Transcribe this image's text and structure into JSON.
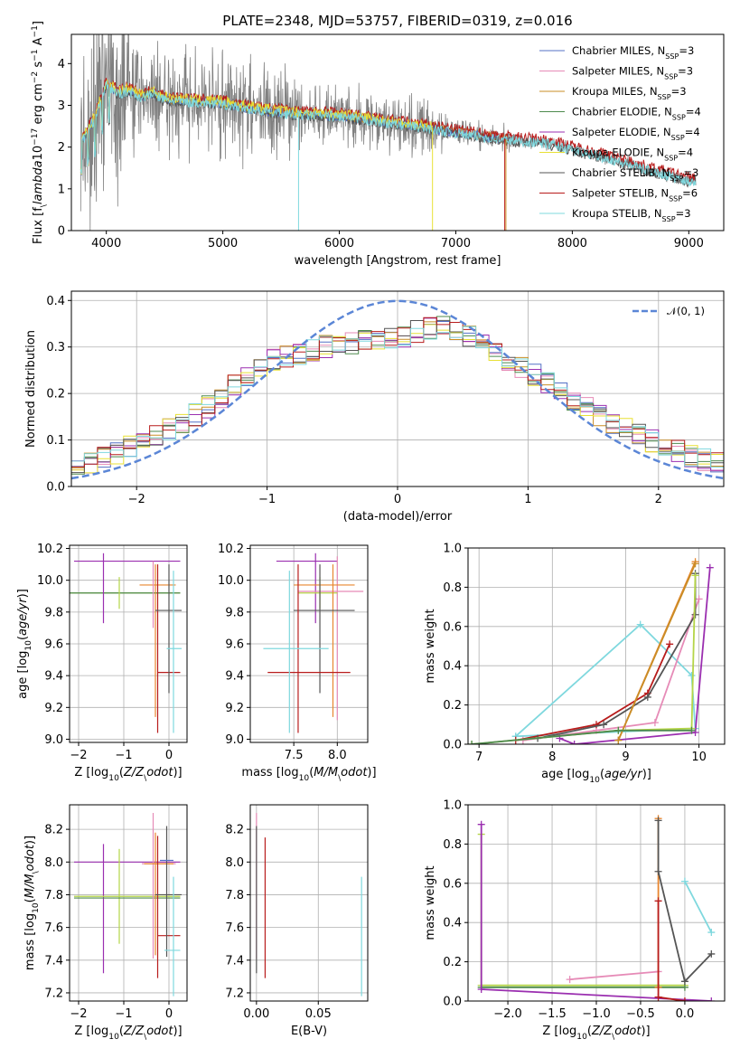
{
  "colors": {
    "Chabrier MILES": "#5470c6",
    "Salpeter MILES": "#e68bb7",
    "Kroupa MILES": "#c98d26",
    "Chabrier ELODIE": "#4e8a4e",
    "Salpeter ELODIE": "#9b2fb0",
    "Kroupa ELODIE": "#e8e035",
    "Chabrier STELIB": "#555555",
    "Salpeter STELIB": "#b81c1c",
    "Kroupa STELIB": "#7fd8de",
    "data": "#808080",
    "normal": "#5b86d6",
    "orange": "#e8862f",
    "lime": "#b5d548"
  },
  "chart_data": [
    {
      "type": "line",
      "title": "PLATE=2348, MJD=53757, FIBERID=0319, z=0.016",
      "xlabel": "wavelength [Angstrom, rest frame]",
      "ylabel": "Flux [f$_\\lambda$10$^{-17}$ erg cm$^{-2}$ s$^{-1}$ A$^{-1}$]",
      "xlim": [
        3700,
        9300
      ],
      "ylim": [
        0,
        4.7
      ],
      "xticks": [
        "4000",
        "5000",
        "6000",
        "7000",
        "8000",
        "9000"
      ],
      "yticks": [
        "0",
        "1",
        "2",
        "3",
        "4"
      ],
      "legend": [
        "Chabrier MILES, N$_{SSP}$=3",
        "Salpeter MILES, N$_{SSP}$=3",
        "Kroupa MILES, N$_{SSP}$=3",
        "Chabrier ELODIE, N$_{SSP}$=4",
        "Salpeter ELODIE, N$_{SSP}$=4",
        "Kroupa ELODIE, N$_{SSP}$=4",
        "Chabrier STELIB, N$_{SSP}$=3",
        "Salpeter STELIB, N$_{SSP}$=6",
        "Kroupa STELIB, N$_{SSP}$=3"
      ],
      "legend_placement": "upper-right",
      "continuum": [
        [
          3800,
          2.2
        ],
        [
          3900,
          2.7
        ],
        [
          4000,
          3.5
        ],
        [
          4100,
          3.3
        ],
        [
          4200,
          3.35
        ],
        [
          4300,
          3.2
        ],
        [
          4400,
          3.3
        ],
        [
          4500,
          3.15
        ],
        [
          4700,
          3.1
        ],
        [
          5000,
          3.05
        ],
        [
          5300,
          2.9
        ],
        [
          5600,
          2.8
        ],
        [
          6000,
          2.75
        ],
        [
          6400,
          2.6
        ],
        [
          6800,
          2.45
        ],
        [
          7000,
          2.35
        ],
        [
          7400,
          2.2
        ],
        [
          7800,
          2.1
        ],
        [
          8000,
          1.95
        ],
        [
          8300,
          1.75
        ],
        [
          8600,
          1.5
        ],
        [
          8800,
          1.35
        ],
        [
          9000,
          1.2
        ]
      ]
    },
    {
      "type": "bar",
      "xlabel": "(data-model)/error",
      "ylabel": "Normed distribution",
      "xlim": [
        -2.5,
        2.5
      ],
      "ylim": [
        0,
        0.42
      ],
      "xticks": [
        "-2",
        "-1",
        "0",
        "1",
        "2"
      ],
      "yticks": [
        "0.0",
        "0.1",
        "0.2",
        "0.3",
        "0.4"
      ],
      "legend": [
        "𝒩(0, 1)"
      ],
      "legend_placement": "upper-right",
      "bins": 50,
      "envelope": [
        [
          -2.5,
          0.035
        ],
        [
          -2.0,
          0.09
        ],
        [
          -1.5,
          0.16
        ],
        [
          -1.0,
          0.27
        ],
        [
          -0.5,
          0.305
        ],
        [
          0.0,
          0.32
        ],
        [
          0.3,
          0.345
        ],
        [
          0.5,
          0.33
        ],
        [
          1.0,
          0.25
        ],
        [
          1.5,
          0.16
        ],
        [
          2.0,
          0.09
        ],
        [
          2.5,
          0.045
        ]
      ]
    },
    {
      "type": "scatter",
      "xlabel": "Z [log$_{10}$($Z/Z_\\odot$)]",
      "ylabel": "age  [log$_{10}$($age/yr$)]",
      "xlim": [
        -2.2,
        0.4
      ],
      "ylim": [
        8.98,
        10.22
      ],
      "xticks": [
        "-2",
        "-1",
        "0"
      ],
      "yticks": [
        "9.0",
        "9.2",
        "9.4",
        "9.6",
        "9.8",
        "10.0",
        "10.2"
      ]
    },
    {
      "type": "scatter",
      "xlabel": "mass [log$_{10}$($M/M_\\odot$)]",
      "xlim": [
        7.0,
        8.35
      ],
      "ylim": [
        8.98,
        10.22
      ],
      "xticks": [
        "7.5",
        "8.0"
      ],
      "yticks": [
        "9.0",
        "9.2",
        "9.4",
        "9.6",
        "9.8",
        "10.0",
        "10.2"
      ]
    },
    {
      "type": "line",
      "xlabel": "age  [log$_{10}$($age/yr$)]",
      "ylabel": "mass weight",
      "xlim": [
        6.85,
        10.35
      ],
      "ylim": [
        0,
        1
      ],
      "xticks": [
        "7",
        "8",
        "9",
        "10"
      ],
      "yticks": [
        "0.0",
        "0.2",
        "0.4",
        "0.6",
        "0.8",
        "1.0"
      ]
    },
    {
      "type": "scatter",
      "xlabel": "Z [log$_{10}$($Z/Z_\\odot$)]",
      "ylabel": "mass [log$_{10}$($M/M_\\odot$)]",
      "xlim": [
        -2.2,
        0.4
      ],
      "ylim": [
        7.15,
        8.35
      ],
      "xticks": [
        "-2",
        "-1",
        "0"
      ],
      "yticks": [
        "7.2",
        "7.4",
        "7.6",
        "7.8",
        "8.0",
        "8.2"
      ]
    },
    {
      "type": "scatter",
      "xlabel": "E(B-V)",
      "xlim": [
        -0.005,
        0.09
      ],
      "ylim": [
        7.15,
        8.35
      ],
      "xticks": [
        "0.00",
        "0.05"
      ],
      "yticks": [
        "7.2",
        "7.4",
        "7.6",
        "7.8",
        "8.0",
        "8.2"
      ]
    },
    {
      "type": "line",
      "xlabel": "Z [log$_{10}$($Z/Z_\\odot$)]",
      "ylabel": "mass weight",
      "xlim": [
        -2.45,
        0.45
      ],
      "ylim": [
        0,
        1
      ],
      "xticks": [
        "-2.0",
        "-1.5",
        "-1.0",
        "-0.5",
        "0.0"
      ],
      "yticks": [
        "0.0",
        "0.2",
        "0.4",
        "0.6",
        "0.8",
        "1.0"
      ]
    }
  ],
  "err": {
    "age_z": [
      {
        "c": "#b5d548",
        "x": -2.3,
        "y": 9.92,
        "xe": [
          -2.3,
          0.25
        ],
        "ye": [
          9.92,
          9.92
        ]
      },
      {
        "c": "#4e8a4e",
        "x": -2.3,
        "y": 9.92,
        "xe": [
          -2.3,
          0.25
        ],
        "ye": [
          9.92,
          9.92
        ]
      },
      {
        "c": "#9b2fb0",
        "x": -1.45,
        "y": 10.12,
        "xe": [
          -2.1,
          0.25
        ],
        "ye": [
          9.73,
          10.17
        ]
      },
      {
        "c": "#b5d548",
        "x": -1.1,
        "y": 9.92,
        "xe": [
          -1.1,
          -1.1
        ],
        "ye": [
          9.82,
          10.02
        ]
      },
      {
        "c": "#e8862f",
        "x": -0.3,
        "y": 9.97,
        "xe": [
          -0.65,
          0.15
        ],
        "ye": [
          9.14,
          10.1
        ]
      },
      {
        "c": "#e68bb7",
        "x": -0.35,
        "y": 9.92,
        "xe": [
          -0.35,
          -0.35
        ],
        "ye": [
          9.7,
          10.12
        ]
      },
      {
        "c": "#b81c1c",
        "x": -0.25,
        "y": 9.42,
        "xe": [
          -0.25,
          0.25
        ],
        "ye": [
          9.04,
          10.1
        ]
      },
      {
        "c": "#555555",
        "x": -0.0,
        "y": 9.81,
        "xe": [
          -0.3,
          0.28
        ],
        "ye": [
          9.29,
          10.1
        ]
      },
      {
        "c": "#7fd8de",
        "x": 0.1,
        "y": 9.57,
        "xe": [
          -0.05,
          0.28
        ],
        "ye": [
          9.04,
          10.06
        ]
      }
    ],
    "age_mass": [
      {
        "c": "#9b2fb0",
        "x": 7.75,
        "y": 10.12,
        "xe": [
          7.3,
          8.0
        ],
        "ye": [
          9.73,
          10.17
        ]
      },
      {
        "c": "#e68bb7",
        "x": 8.0,
        "y": 9.93,
        "xe": [
          7.55,
          8.3
        ],
        "ye": [
          9.12,
          10.15
        ]
      },
      {
        "c": "#b5d548",
        "x": 7.8,
        "y": 9.92,
        "xe": [
          7.55,
          8.0
        ],
        "ye": [
          9.82,
          10.02
        ]
      },
      {
        "c": "#e8862f",
        "x": 7.95,
        "y": 9.97,
        "xe": [
          7.5,
          8.2
        ],
        "ye": [
          9.14,
          10.1
        ]
      },
      {
        "c": "#555555",
        "x": 7.8,
        "y": 9.81,
        "xe": [
          7.5,
          8.2
        ],
        "ye": [
          9.29,
          10.1
        ]
      },
      {
        "c": "#b81c1c",
        "x": 7.55,
        "y": 9.42,
        "xe": [
          7.2,
          8.15
        ],
        "ye": [
          9.04,
          10.1
        ]
      },
      {
        "c": "#7fd8de",
        "x": 7.45,
        "y": 9.57,
        "xe": [
          7.15,
          7.9
        ],
        "ye": [
          9.04,
          10.06
        ]
      }
    ],
    "mass_z": [
      {
        "c": "#9b2fb0",
        "x": -1.45,
        "y": 8.0,
        "xe": [
          -2.1,
          0.25
        ],
        "ye": [
          7.32,
          8.11
        ]
      },
      {
        "c": "#b5d548",
        "x": -1.1,
        "y": 7.79,
        "xe": [
          -2.1,
          0.25
        ],
        "ye": [
          7.5,
          8.08
        ]
      },
      {
        "c": "#4e8a4e",
        "x": -1.1,
        "y": 7.78,
        "xe": [
          -2.1,
          0.25
        ],
        "ye": [
          7.78,
          7.78
        ]
      },
      {
        "c": "#e68bb7",
        "x": -0.35,
        "y": 7.99,
        "xe": [
          -0.6,
          0.15
        ],
        "ye": [
          7.41,
          8.3
        ]
      },
      {
        "c": "#e8862f",
        "x": -0.3,
        "y": 7.99,
        "xe": [
          -0.55,
          0.1
        ],
        "ye": [
          7.43,
          8.18
        ]
      },
      {
        "c": "#b81c1c",
        "x": -0.25,
        "y": 7.55,
        "xe": [
          -0.25,
          0.25
        ],
        "ye": [
          7.29,
          8.16
        ]
      },
      {
        "c": "#555555",
        "x": -0.05,
        "y": 7.8,
        "xe": [
          -0.3,
          0.28
        ],
        "ye": [
          7.42,
          8.22
        ]
      },
      {
        "c": "#5470c6",
        "x": -0.1,
        "y": 8.01,
        "xe": [
          -0.2,
          0.1
        ],
        "ye": [
          8.01,
          8.01
        ]
      },
      {
        "c": "#7fd8de",
        "x": 0.1,
        "y": 7.46,
        "xe": [
          -0.1,
          0.25
        ],
        "ye": [
          7.18,
          7.91
        ]
      }
    ],
    "mass_ebv": [
      {
        "c": "#e68bb7",
        "x": 0.0,
        "y": 8.0,
        "xe": [
          0.0,
          0.0
        ],
        "ye": [
          7.41,
          8.3
        ]
      },
      {
        "c": "#555555",
        "x": 0.0,
        "y": 7.8,
        "xe": [
          0.0,
          0.0
        ],
        "ye": [
          7.32,
          8.22
        ]
      },
      {
        "c": "#b81c1c",
        "x": 0.007,
        "y": 7.55,
        "xe": [
          0.007,
          0.007
        ],
        "ye": [
          7.29,
          8.15
        ]
      },
      {
        "c": "#7fd8de",
        "x": 0.085,
        "y": 7.46,
        "xe": [
          0.085,
          0.085
        ],
        "ye": [
          7.18,
          7.91
        ]
      }
    ]
  },
  "mw_age": [
    {
      "c": "#7fd8de",
      "p": [
        [
          7.5,
          0.04
        ],
        [
          9.2,
          0.61
        ],
        [
          9.9,
          0.35
        ],
        [
          9.95,
          0.08
        ],
        [
          7.5,
          0.04
        ]
      ]
    },
    {
      "c": "#e68bb7",
      "p": [
        [
          7.6,
          0.02
        ],
        [
          8.6,
          0.07
        ],
        [
          9.4,
          0.11
        ],
        [
          10.0,
          0.74
        ]
      ]
    },
    {
      "c": "#b81c1c",
      "p": [
        [
          7.5,
          0.02
        ],
        [
          8.6,
          0.1
        ],
        [
          9.3,
          0.26
        ],
        [
          9.6,
          0.51
        ]
      ]
    },
    {
      "c": "#555555",
      "p": [
        [
          7.8,
          0.03
        ],
        [
          8.7,
          0.1
        ],
        [
          9.3,
          0.24
        ],
        [
          9.95,
          0.66
        ],
        [
          9.95,
          0.87
        ]
      ]
    },
    {
      "c": "#9b2fb0",
      "p": [
        [
          8.1,
          0.03
        ],
        [
          8.3,
          0.0
        ],
        [
          9.95,
          0.06
        ],
        [
          10.15,
          0.9
        ]
      ]
    },
    {
      "c": "#e8862f",
      "p": [
        [
          8.9,
          0.02
        ],
        [
          9.95,
          0.93
        ]
      ]
    },
    {
      "c": "#c98d26",
      "p": [
        [
          8.9,
          0.02
        ],
        [
          9.95,
          0.92
        ]
      ]
    },
    {
      "c": "#b5d548",
      "p": [
        [
          6.9,
          0.0
        ],
        [
          8.9,
          0.07
        ],
        [
          9.9,
          0.08
        ],
        [
          9.95,
          0.86
        ]
      ]
    },
    {
      "c": "#4e8a4e",
      "p": [
        [
          6.9,
          0.0
        ],
        [
          8.9,
          0.07
        ],
        [
          9.9,
          0.07
        ]
      ]
    }
  ],
  "mw_z": [
    {
      "c": "#b5d548",
      "p": [
        [
          -2.3,
          0.85
        ],
        [
          -2.3,
          0.08
        ],
        [
          0.0,
          0.08
        ]
      ]
    },
    {
      "c": "#4e8a4e",
      "p": [
        [
          -2.3,
          0.07
        ],
        [
          0.0,
          0.07
        ]
      ]
    },
    {
      "c": "#9b2fb0",
      "p": [
        [
          -2.3,
          0.9
        ],
        [
          -2.3,
          0.06
        ],
        [
          0.3,
          0.0
        ]
      ]
    },
    {
      "c": "#e68bb7",
      "p": [
        [
          -1.3,
          0.11
        ],
        [
          -0.3,
          0.15
        ]
      ]
    },
    {
      "c": "#e8862f",
      "p": [
        [
          -0.3,
          0.93
        ],
        [
          -0.3,
          0.07
        ]
      ]
    },
    {
      "c": "#b81c1c",
      "p": [
        [
          -0.3,
          0.51
        ],
        [
          -0.3,
          0.02
        ],
        [
          0.0,
          0.0
        ]
      ]
    },
    {
      "c": "#555555",
      "p": [
        [
          -0.3,
          0.92
        ],
        [
          -0.3,
          0.66
        ],
        [
          0.0,
          0.1
        ],
        [
          0.3,
          0.24
        ]
      ]
    },
    {
      "c": "#7fd8de",
      "p": [
        [
          0.0,
          0.61
        ],
        [
          0.3,
          0.35
        ]
      ]
    }
  ]
}
